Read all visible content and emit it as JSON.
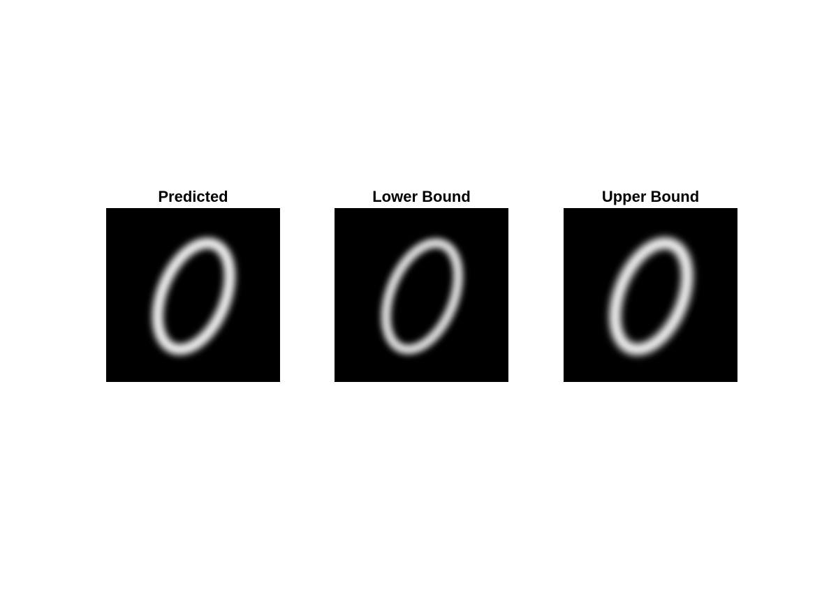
{
  "panels": [
    {
      "title": "Predicted",
      "image_subject": "handwritten digit zero",
      "stroke_scale": 1.0
    },
    {
      "title": "Lower Bound",
      "image_subject": "handwritten digit zero",
      "stroke_scale": 0.9
    },
    {
      "title": "Upper Bound",
      "image_subject": "handwritten digit zero",
      "stroke_scale": 1.05
    }
  ],
  "colors": {
    "background": "#ffffff",
    "image_background": "#000000",
    "digit_stroke": "#ededed",
    "title_text": "#000000"
  }
}
